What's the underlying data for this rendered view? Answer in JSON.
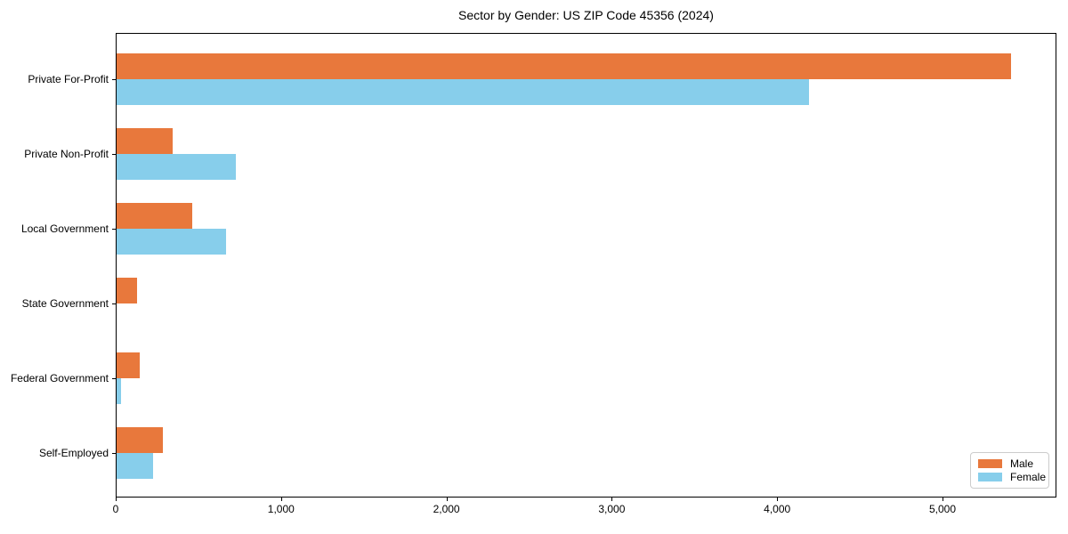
{
  "chart_data": {
    "type": "bar",
    "orientation": "horizontal",
    "title": "Sector by Gender: US ZIP Code 45356 (2024)",
    "categories": [
      "Private For-Profit",
      "Private Non-Profit",
      "Local Government",
      "State Government",
      "Federal Government",
      "Self-Employed"
    ],
    "series": [
      {
        "name": "Male",
        "color": "#e8783c",
        "values": [
          5410,
          340,
          460,
          125,
          140,
          280
        ]
      },
      {
        "name": "Female",
        "color": "#87ceeb",
        "values": [
          4190,
          720,
          660,
          0,
          25,
          220
        ]
      }
    ],
    "xlabel": "",
    "ylabel": "",
    "xlim": [
      0,
      5689
    ],
    "x_ticks": [
      {
        "value": 0,
        "label": "0"
      },
      {
        "value": 1000,
        "label": "1,000"
      },
      {
        "value": 2000,
        "label": "2,000"
      },
      {
        "value": 3000,
        "label": "3,000"
      },
      {
        "value": 4000,
        "label": "4,000"
      },
      {
        "value": 5000,
        "label": "5,000"
      }
    ],
    "grid": false,
    "legend": {
      "position": "lower-right",
      "items": [
        {
          "label": "Male",
          "color": "#e8783c"
        },
        {
          "label": "Female",
          "color": "#87ceeb"
        }
      ]
    }
  }
}
